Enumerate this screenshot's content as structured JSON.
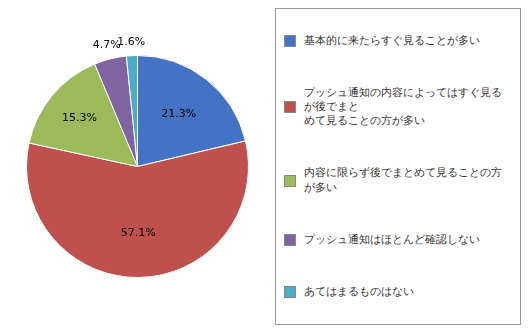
{
  "chart_data": {
    "type": "pie",
    "categories": [
      "基本的に来たらすぐ見ることが多い",
      "プッシュ通知の内容によってはすぐ見るが後でまと\nめて見ることの方が多い",
      "内容に限らず後でまとめて見ることの方が多い",
      "プッシュ通知はほとんど確認しない",
      "あてはまるものはない"
    ],
    "values": [
      21.3,
      57.1,
      15.3,
      4.7,
      1.6
    ],
    "value_labels": [
      "21.3%",
      "57.1%",
      "15.3%",
      "4.7%",
      "1.6%"
    ],
    "colors": [
      "#4472C4",
      "#C0504D",
      "#9BBB59",
      "#8064A2",
      "#4BACC6"
    ],
    "data_labels": true,
    "legend": "right"
  }
}
